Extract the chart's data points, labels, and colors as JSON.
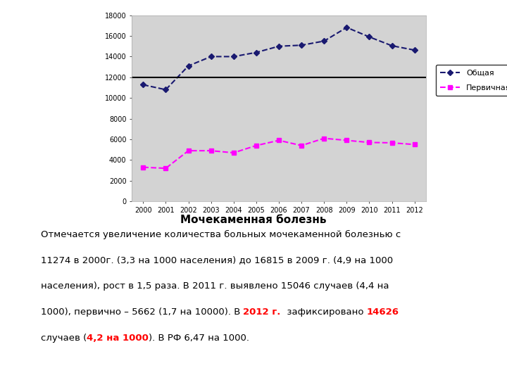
{
  "years": [
    2000,
    2001,
    2002,
    2003,
    2004,
    2005,
    2006,
    2007,
    2008,
    2009,
    2010,
    2011,
    2012
  ],
  "obshaya": [
    11274,
    10800,
    13100,
    14000,
    14000,
    14400,
    15000,
    15100,
    15500,
    16815,
    15900,
    15046,
    14626
  ],
  "pervichnaya": [
    3300,
    3200,
    4900,
    4900,
    4700,
    5400,
    5900,
    5400,
    6100,
    5900,
    5700,
    5662,
    5500
  ],
  "ylim": [
    0,
    18000
  ],
  "yticks": [
    0,
    2000,
    4000,
    6000,
    8000,
    10000,
    12000,
    14000,
    16000,
    18000
  ],
  "plot_bg": "#d3d3d3",
  "fig_bg": "#ffffff",
  "line1_color": "#191970",
  "line2_color": "#FF00FF",
  "hline_y": 12000,
  "hline_color": "#000000",
  "legend_label1": "Общая",
  "legend_label2": "Первичная",
  "title_text": "Мочекаменная болезнь",
  "sq_yellow": "#FFD700",
  "sq_red": "#DC143C",
  "sq_blue": "#00008B"
}
